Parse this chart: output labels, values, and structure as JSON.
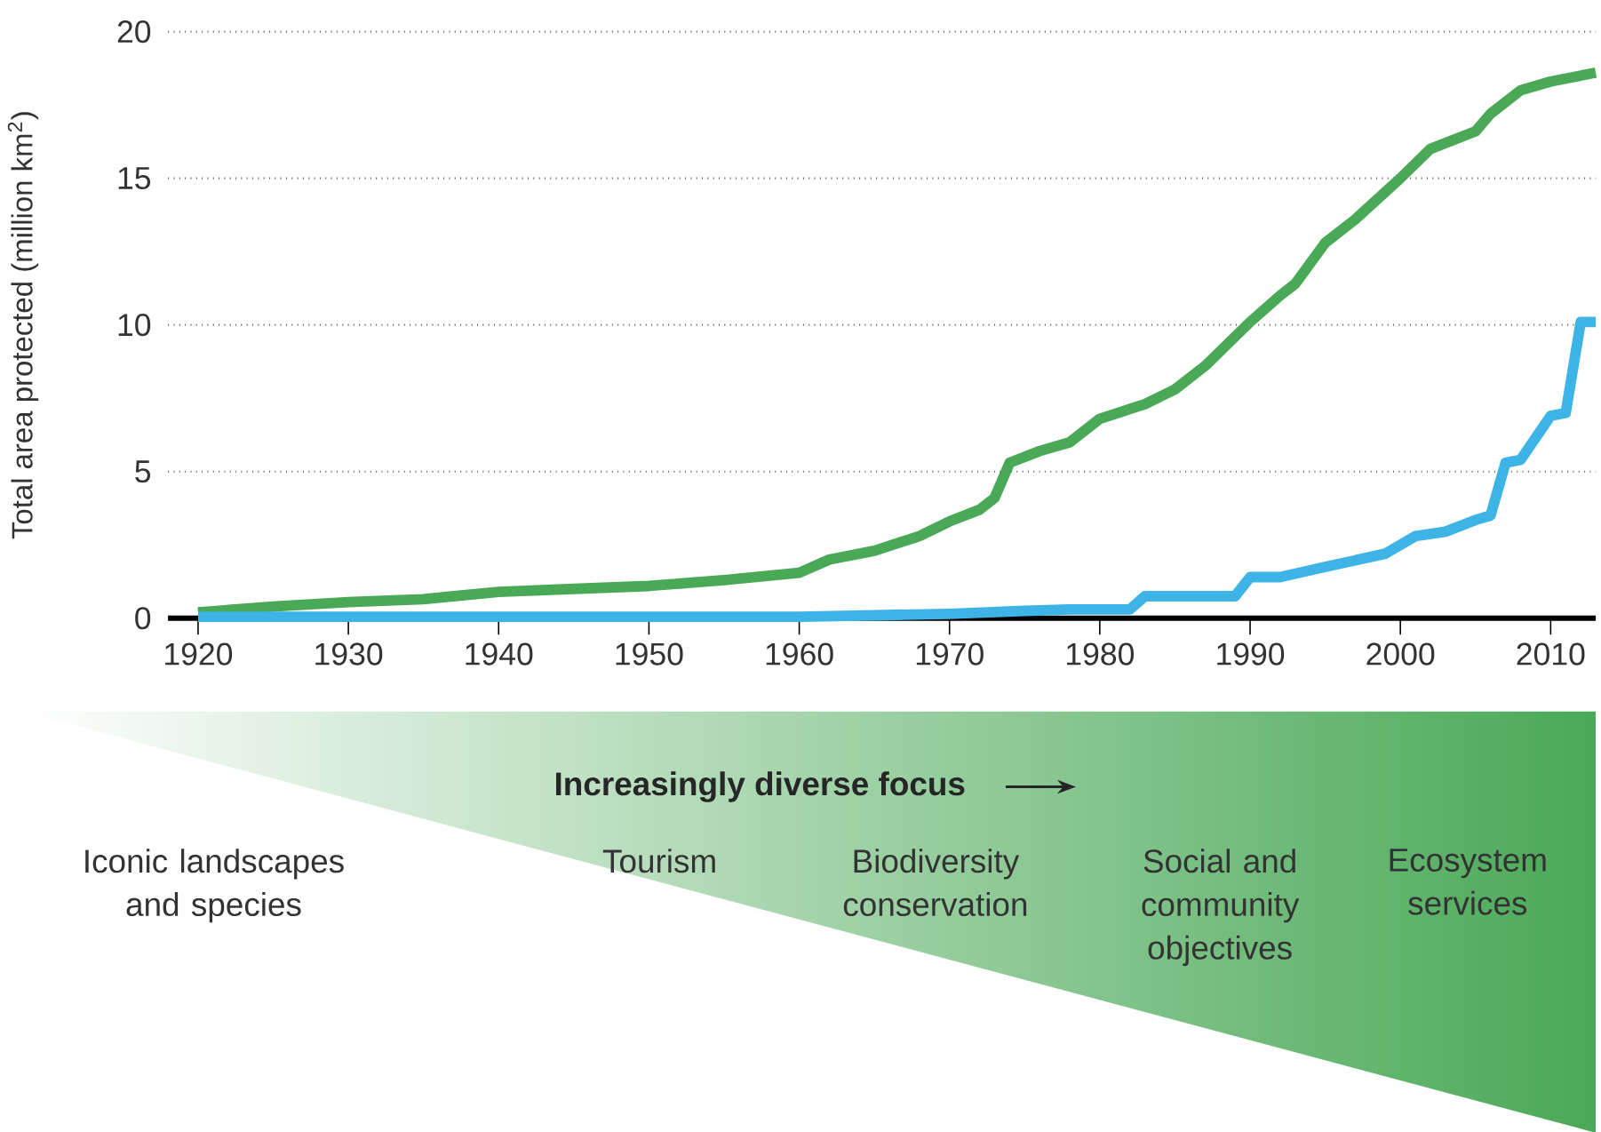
{
  "chart_data": {
    "type": "line",
    "ylabel": "Total area protected (million km$^{2}$)",
    "xlim": [
      1918,
      2013
    ],
    "xticks": [
      1920,
      1930,
      1940,
      1950,
      1960,
      1970,
      1980,
      1990,
      2000,
      2010
    ],
    "ylim": [
      0,
      20
    ],
    "yticks": [
      0,
      5,
      10,
      15,
      20
    ],
    "grid": "y",
    "marker": "none",
    "line_style": "solid",
    "series": [
      {
        "color": "#4aa957",
        "x": [
          1920,
          1925,
          1930,
          1935,
          1940,
          1945,
          1950,
          1955,
          1960,
          1962,
          1965,
          1968,
          1970,
          1972,
          1973,
          1974,
          1976,
          1978,
          1980,
          1983,
          1985,
          1987,
          1990,
          1992,
          1993,
          1995,
          1997,
          2000,
          2002,
          2005,
          2006,
          2008,
          2010,
          2013
        ],
        "values": [
          0.2,
          0.4,
          0.55,
          0.65,
          0.9,
          1.0,
          1.1,
          1.3,
          1.55,
          2.0,
          2.3,
          2.8,
          3.3,
          3.7,
          4.1,
          5.3,
          5.7,
          6.0,
          6.8,
          7.3,
          7.8,
          8.6,
          10.1,
          11.0,
          11.4,
          12.8,
          13.6,
          15.0,
          16.0,
          16.6,
          17.2,
          18.0,
          18.3,
          18.6
        ]
      },
      {
        "color": "#3db4e5",
        "x": [
          1920,
          1960,
          1965,
          1970,
          1975,
          1978,
          1982,
          1983,
          1989,
          1990,
          1992,
          1995,
          1999,
          2001,
          2003,
          2005,
          2006,
          2007,
          2008,
          2010,
          2011,
          2012,
          2013
        ],
        "values": [
          0.05,
          0.05,
          0.1,
          0.15,
          0.25,
          0.3,
          0.3,
          0.75,
          0.75,
          1.4,
          1.4,
          1.75,
          2.2,
          2.8,
          2.95,
          3.35,
          3.5,
          5.3,
          5.4,
          6.9,
          7.0,
          10.1,
          10.1
        ]
      }
    ],
    "annotations": [
      "Increasingly diverse focus",
      "Iconic landscapes and species",
      "Tourism",
      "Biodiversity conservation",
      "Social and community objectives",
      "Ecosystem services"
    ]
  }
}
